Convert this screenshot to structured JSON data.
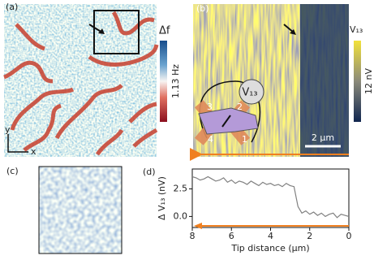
{
  "panels": {
    "a": {
      "label": "(a)",
      "colorbar_title": "Δf",
      "colorbar_scale": "1.13 Hz",
      "axis_y": "y",
      "axis_x": "x"
    },
    "b": {
      "label": "(b)",
      "colorbar_title": "V₁₃",
      "colorbar_scale": "12 nV",
      "scale_bar": "2 μm",
      "probe_label": "V₁₃",
      "contacts": [
        "1",
        "2",
        "3",
        "4"
      ]
    },
    "c": {
      "label": "(c)"
    }
  },
  "chart_data": {
    "type": "line",
    "label": "(d)",
    "x": [
      8.0,
      7.8,
      7.6,
      7.4,
      7.2,
      7.0,
      6.8,
      6.6,
      6.4,
      6.2,
      6.0,
      5.8,
      5.6,
      5.4,
      5.2,
      5.0,
      4.8,
      4.6,
      4.4,
      4.2,
      4.0,
      3.8,
      3.6,
      3.4,
      3.2,
      3.0,
      2.8,
      2.6,
      2.4,
      2.2,
      2.0,
      1.8,
      1.6,
      1.4,
      1.2,
      1.0,
      0.8,
      0.6,
      0.4,
      0.2,
      0.0
    ],
    "series": [
      {
        "color": "#808080",
        "values": [
          3.6,
          3.5,
          3.3,
          3.4,
          3.6,
          3.4,
          3.2,
          3.3,
          3.5,
          3.1,
          3.3,
          3.0,
          3.2,
          3.1,
          2.9,
          3.2,
          3.0,
          2.8,
          3.1,
          2.9,
          3.0,
          2.8,
          2.9,
          2.7,
          3.0,
          2.8,
          2.7,
          0.9,
          0.3,
          0.5,
          0.2,
          0.4,
          0.1,
          0.3,
          0.0,
          0.2,
          0.3,
          -0.1,
          0.2,
          0.1,
          0.0
        ]
      }
    ],
    "xlabel": "Tip distance (μm)",
    "ylabel": "Δ V₁₃ (nV)",
    "xlim": [
      8,
      0
    ],
    "ylim": [
      -1,
      4.3
    ],
    "xticks": [
      8,
      6,
      4,
      2,
      0
    ],
    "yticks": [
      {
        "value": 0,
        "label": "0.0"
      },
      2.5
    ],
    "arrow_color": "#f08020"
  }
}
